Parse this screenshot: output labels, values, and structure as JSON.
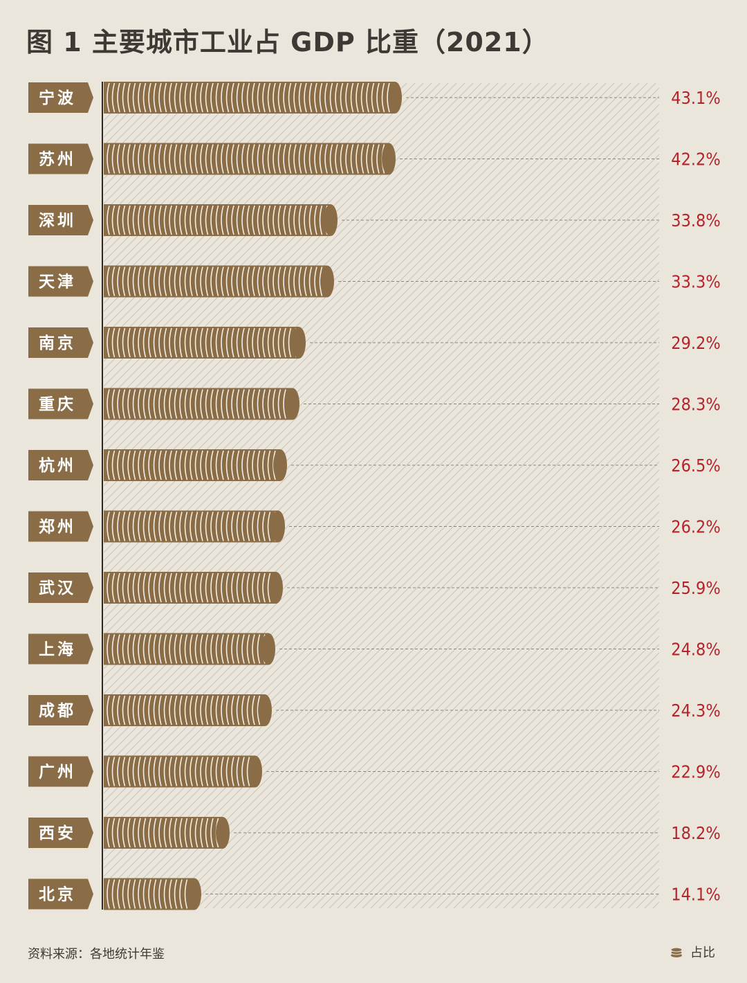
{
  "title": "图 1   主要城市工业占 GDP 比重（2021）",
  "source": "资料来源：各地统计年鉴",
  "legend": {
    "label": "占比",
    "icon": "coin-stack-icon"
  },
  "colors": {
    "background": "#ebe6dc",
    "bar": "#8a6d46",
    "bar_ridge": "#f4efe5",
    "label_bg": "#8a6d46",
    "value_text": "#b5242a",
    "hatch": "#cfc8bb"
  },
  "chart_data": {
    "type": "bar",
    "orientation": "horizontal",
    "categories": [
      "宁波",
      "苏州",
      "深圳",
      "天津",
      "南京",
      "重庆",
      "杭州",
      "郑州",
      "武汉",
      "上海",
      "成都",
      "广州",
      "西安",
      "北京"
    ],
    "values": [
      43.1,
      42.2,
      33.8,
      33.3,
      29.2,
      28.3,
      26.5,
      26.2,
      25.9,
      24.8,
      24.3,
      22.9,
      18.2,
      14.1
    ],
    "value_labels": [
      "43.1%",
      "42.2%",
      "33.8%",
      "33.3%",
      "29.2%",
      "28.3%",
      "26.5%",
      "26.2%",
      "25.9%",
      "24.8%",
      "24.3%",
      "22.9%",
      "18.2%",
      "14.1%"
    ],
    "unit": "%",
    "xlim": [
      0,
      80
    ],
    "grid": false,
    "legend_position": "bottom-right"
  }
}
